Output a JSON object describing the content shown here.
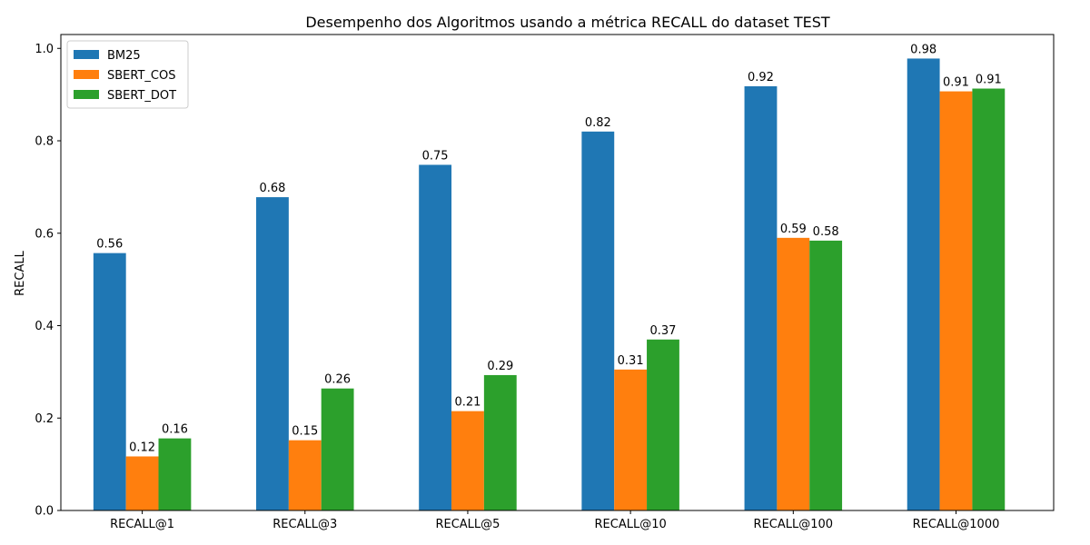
{
  "chart_data": {
    "type": "bar",
    "title": "Desempenho dos Algoritmos usando a métrica RECALL do dataset TEST",
    "xlabel": "",
    "ylabel": "RECALL",
    "categories": [
      "RECALL@1",
      "RECALL@3",
      "RECALL@5",
      "RECALL@10",
      "RECALL@100",
      "RECALL@1000"
    ],
    "ylim": [
      0,
      1.03
    ],
    "yticks": [
      0.0,
      0.2,
      0.4,
      0.6,
      0.8,
      1.0
    ],
    "ytick_labels": [
      "0.0",
      "0.2",
      "0.4",
      "0.6",
      "0.8",
      "1.0"
    ],
    "grid": false,
    "legend_position": "top-left",
    "series": [
      {
        "name": "BM25",
        "color": "#1f77b4",
        "values": [
          0.557,
          0.678,
          0.748,
          0.82,
          0.918,
          0.978
        ],
        "labels": [
          "0.56",
          "0.68",
          "0.75",
          "0.82",
          "0.92",
          "0.98"
        ]
      },
      {
        "name": "SBERT_COS",
        "color": "#ff7f0e",
        "values": [
          0.117,
          0.152,
          0.215,
          0.305,
          0.59,
          0.907
        ],
        "labels": [
          "0.12",
          "0.15",
          "0.21",
          "0.31",
          "0.59",
          "0.91"
        ]
      },
      {
        "name": "SBERT_DOT",
        "color": "#2ca02c",
        "values": [
          0.156,
          0.264,
          0.293,
          0.37,
          0.584,
          0.913
        ],
        "labels": [
          "0.16",
          "0.26",
          "0.29",
          "0.37",
          "0.58",
          "0.91"
        ]
      }
    ]
  }
}
